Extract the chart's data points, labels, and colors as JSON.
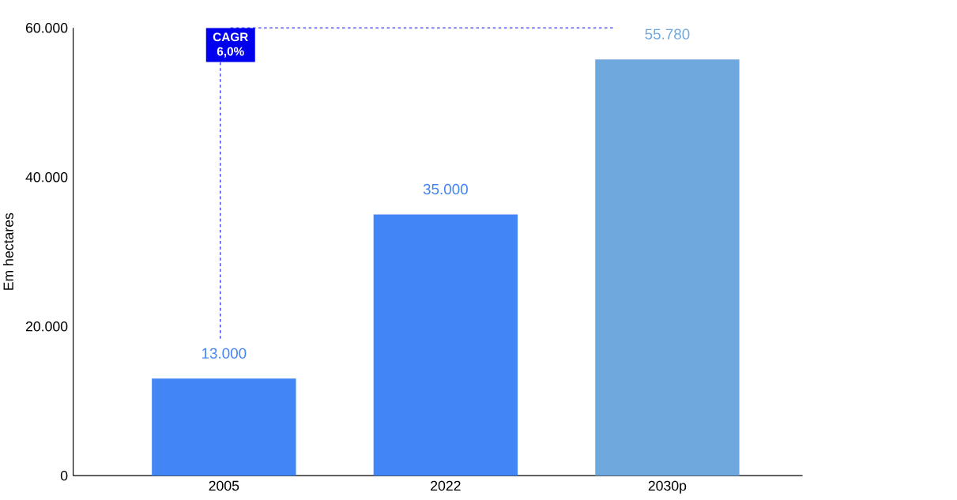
{
  "chart_data": {
    "type": "bar",
    "ylabel": "Em hectares",
    "categories": [
      "2005",
      "2022",
      "2030p"
    ],
    "values": [
      13000,
      35000,
      55780
    ],
    "colors": [
      "#4285f4",
      "#4285f4",
      "#6fa8dc"
    ],
    "value_labels": [
      "13.000",
      "35.000",
      "55.780"
    ],
    "ylim": [
      0,
      60000
    ],
    "yticks": [
      0,
      {
        "value": 20000,
        "label": "20.000"
      },
      {
        "value": 40000,
        "label": "40.000"
      },
      {
        "value": 60000,
        "label": "60.000"
      }
    ],
    "annotations": [
      "CAGR 6,0%"
    ],
    "grid": false
  }
}
